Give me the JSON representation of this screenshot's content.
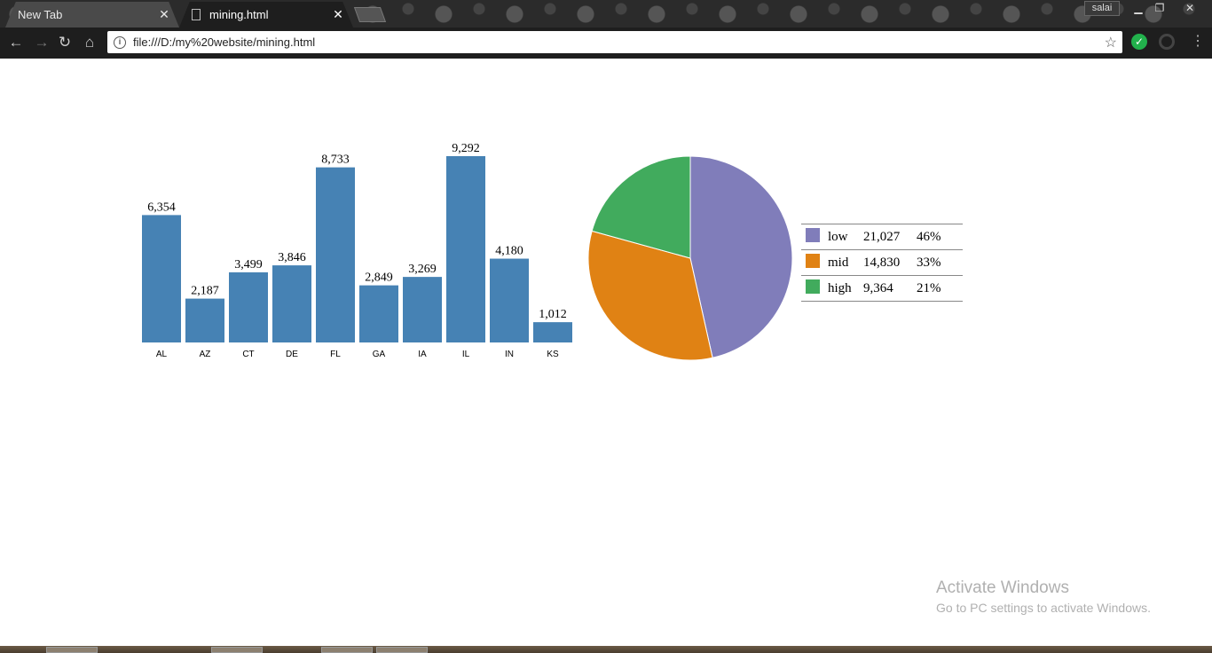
{
  "browser": {
    "tabs": [
      {
        "label": "New Tab",
        "active": false
      },
      {
        "label": "mining.html",
        "active": true
      }
    ],
    "profile_name": "salai",
    "url": "file:///D:/my%20website/mining.html"
  },
  "chart_data": [
    {
      "type": "bar",
      "categories": [
        "AL",
        "AZ",
        "CT",
        "DE",
        "FL",
        "GA",
        "IA",
        "IL",
        "IN",
        "KS"
      ],
      "values": [
        6354,
        2187,
        3499,
        3846,
        8733,
        2849,
        3269,
        9292,
        4180,
        1012
      ],
      "value_labels": [
        "6,354",
        "2,187",
        "3,499",
        "3,846",
        "8,733",
        "2,849",
        "3,269",
        "9,292",
        "4,180",
        "1,012"
      ],
      "color": "#4682b4",
      "ylim": [
        0,
        9292
      ]
    },
    {
      "type": "pie",
      "labels": [
        "low",
        "mid",
        "high"
      ],
      "values": [
        21027,
        14830,
        9364
      ],
      "value_labels": [
        "21,027",
        "14,830",
        "9,364"
      ],
      "percent_labels": [
        "46%",
        "33%",
        "21%"
      ],
      "colors": [
        "#807dba",
        "#e08214",
        "#41ab5d"
      ],
      "legend_position": "right"
    }
  ],
  "watermark": {
    "title": "Activate Windows",
    "subtitle": "Go to PC settings to activate Windows."
  }
}
